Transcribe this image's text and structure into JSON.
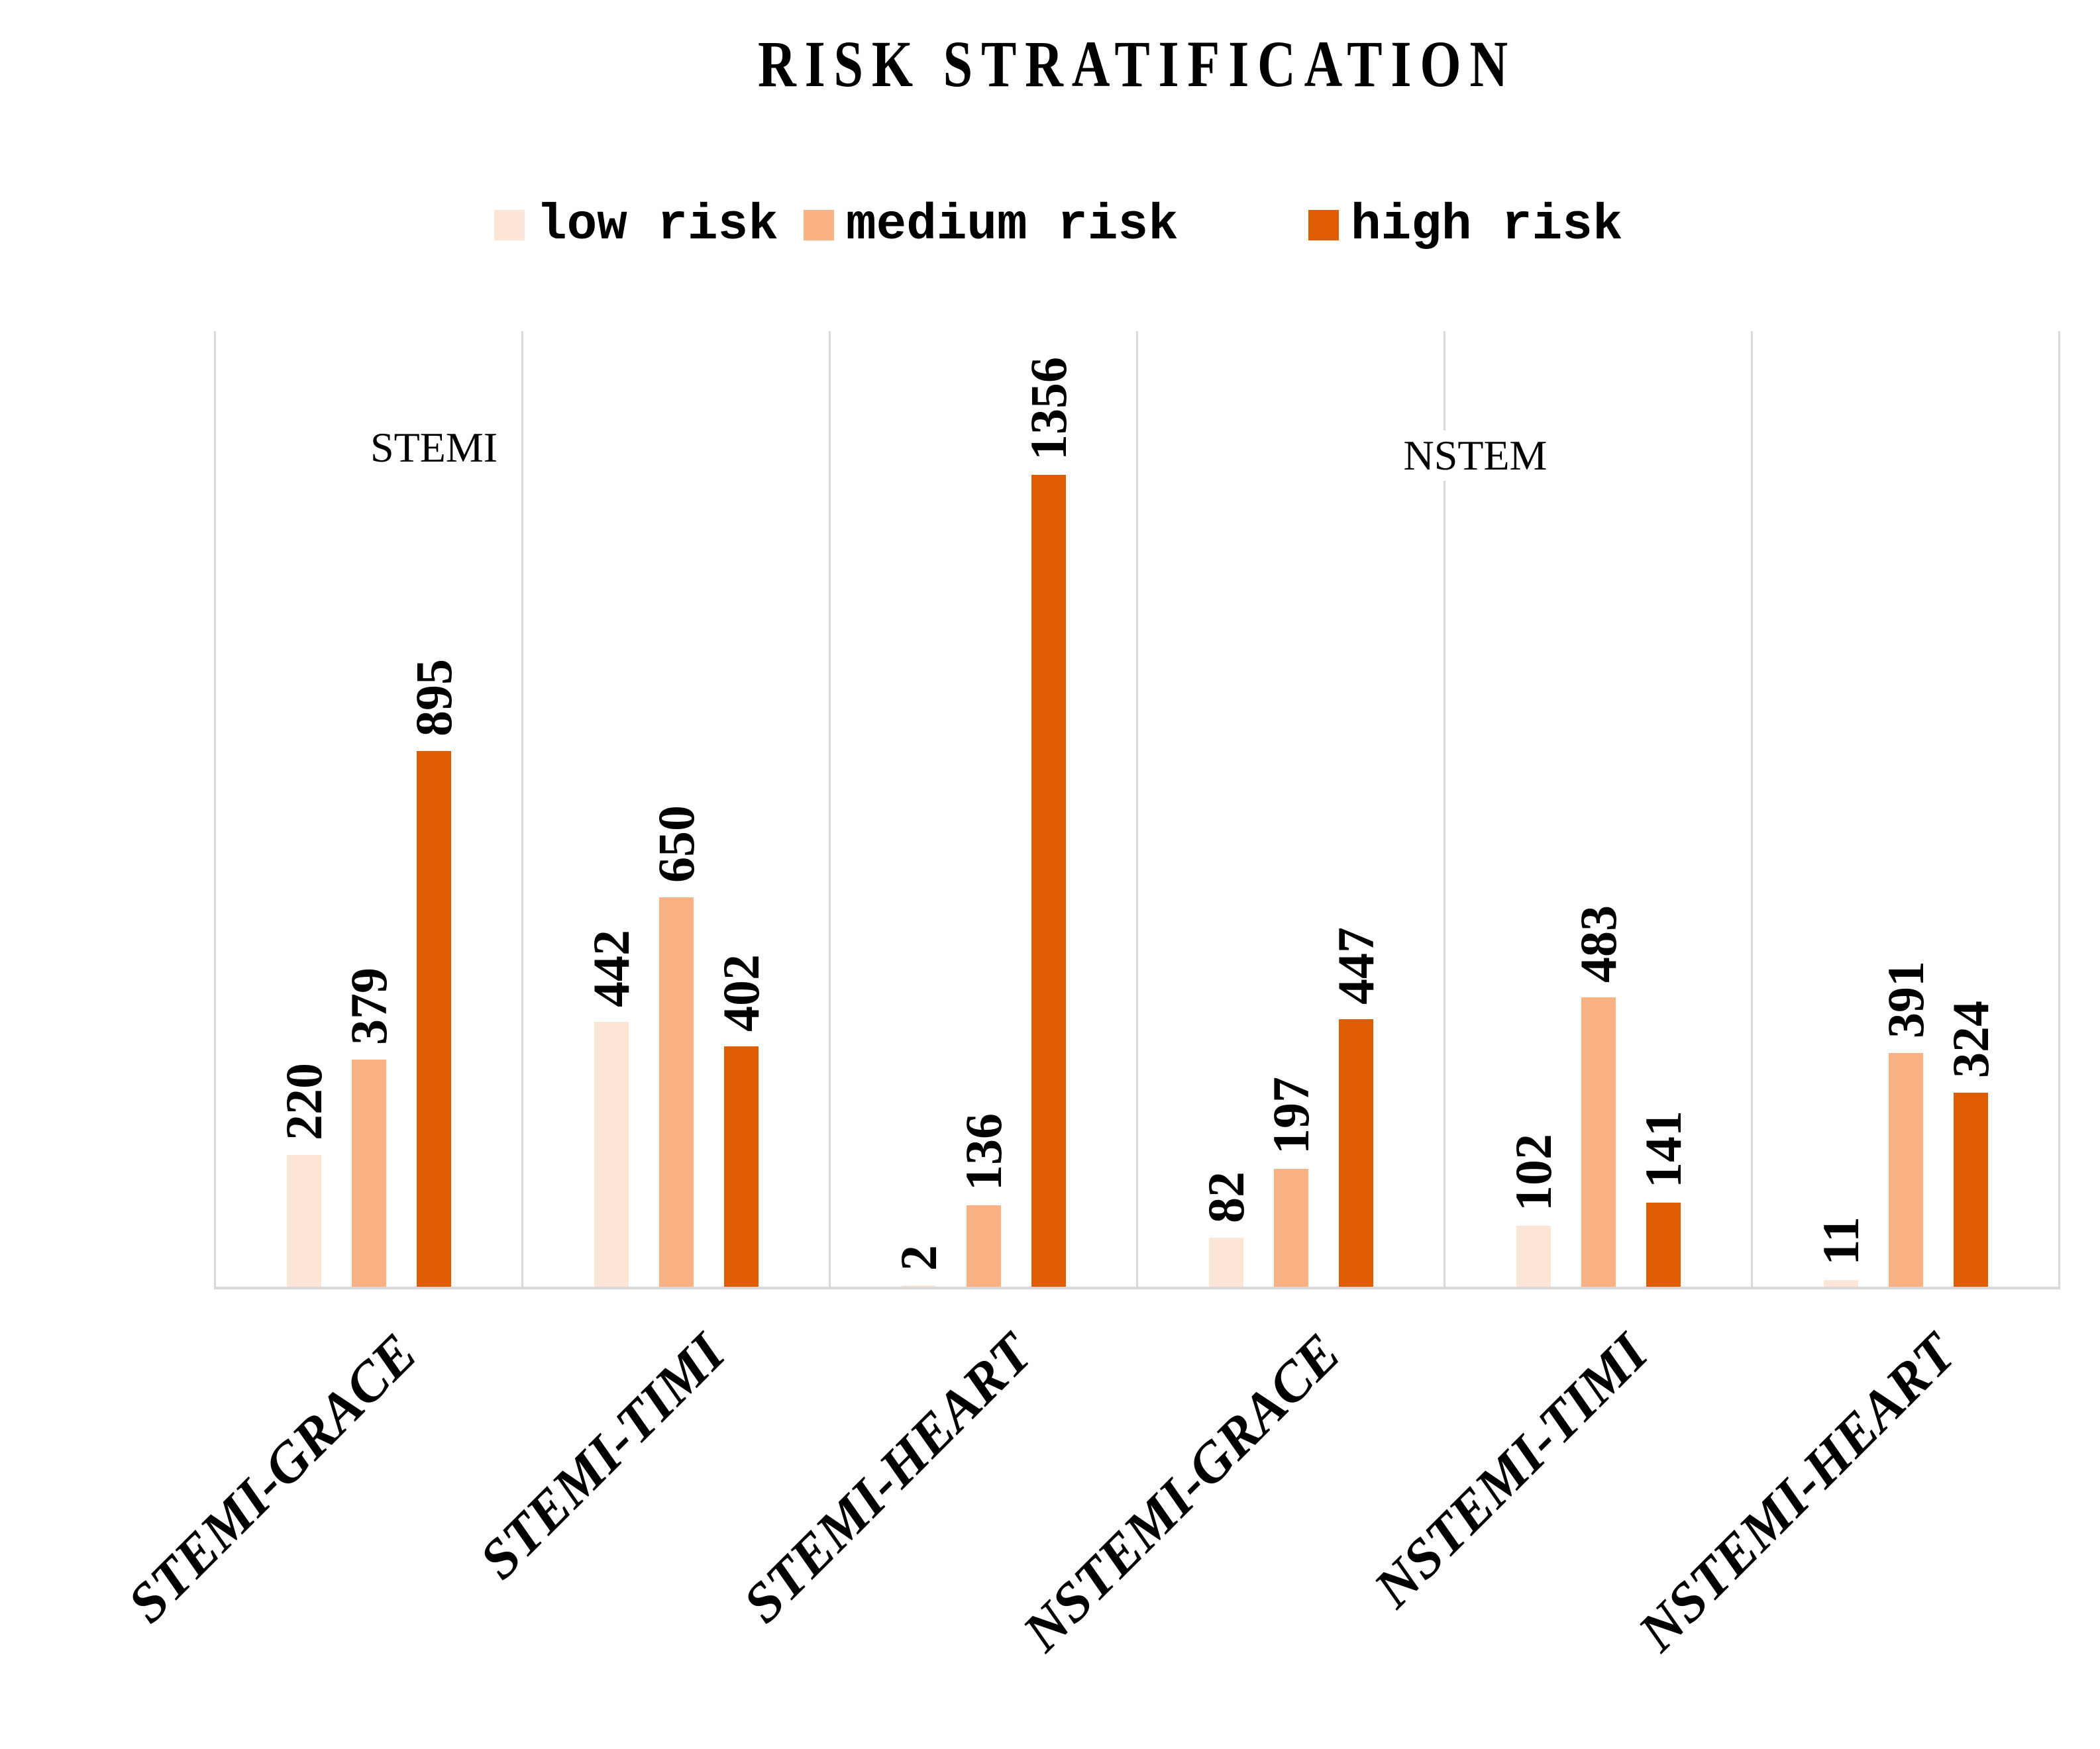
{
  "title": "RISK STRATIFICATION",
  "legend": {
    "position": "top",
    "items": [
      {
        "label": "low risk",
        "color": "#FCE4D6"
      },
      {
        "label": "medium risk",
        "color": "#FAB183"
      },
      {
        "label": "high risk",
        "color": "#E05C03"
      }
    ]
  },
  "section_labels": {
    "left": "STEMI",
    "right": "NSTEM"
  },
  "colors": {
    "low_risk": "#FCE4D6",
    "medium_risk": "#FAB183",
    "high_risk": "#E05C03",
    "gridline": "#D9D9D9",
    "text": "#000000"
  },
  "chart_data": {
    "type": "bar",
    "title": "RISK STRATIFICATION",
    "categories": [
      "STEMI-GRACE",
      "STEMI-TIMI",
      "STEMI-HEART",
      "NSTEMI-GRACE",
      "NSTEMI-TIMI",
      "NSTEMI-HEART"
    ],
    "series": [
      {
        "name": "low risk",
        "color": "#FCE4D6",
        "values": [
          220,
          442,
          2,
          82,
          102,
          11
        ]
      },
      {
        "name": "medium risk",
        "color": "#FAB183",
        "values": [
          379,
          650,
          136,
          197,
          483,
          391
        ]
      },
      {
        "name": "high risk",
        "color": "#E05C03",
        "values": [
          895,
          402,
          1356,
          447,
          141,
          324
        ]
      }
    ],
    "group_sections": [
      {
        "label": "STEMI",
        "categories": [
          "STEMI-GRACE",
          "STEMI-TIMI",
          "STEMI-HEART"
        ]
      },
      {
        "label": "NSTEM",
        "categories": [
          "NSTEMI-GRACE",
          "NSTEMI-TIMI",
          "NSTEMI-HEART"
        ]
      }
    ],
    "xlabel": "",
    "ylabel": "",
    "ylim": [
      0,
      1600
    ],
    "value_axis": "hidden",
    "grid": "vertical category separators only",
    "legend_position": "top",
    "bar_value_labels_rotation": 90,
    "category_label_rotation": -45
  }
}
